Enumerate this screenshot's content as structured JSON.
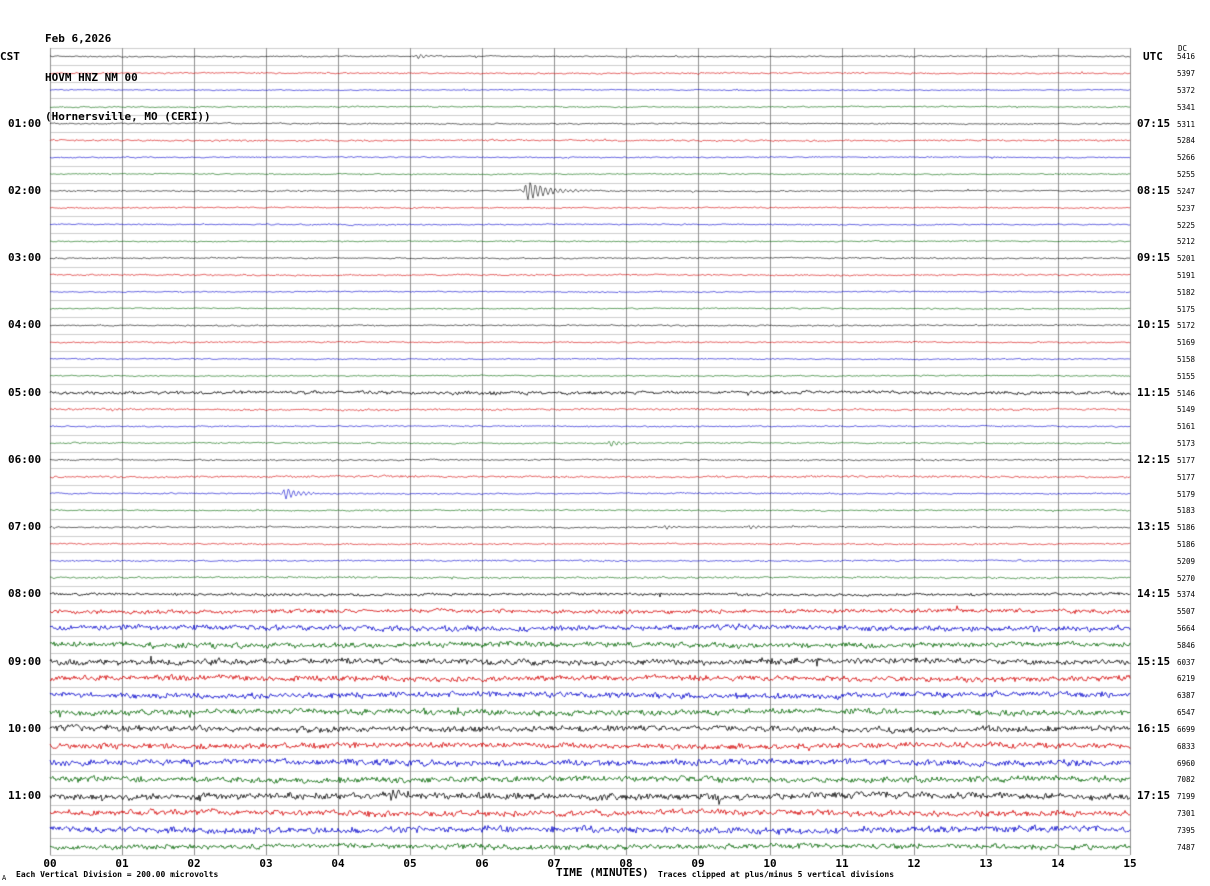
{
  "header": {
    "date": "Feb 6,2026",
    "station": "HOVM HNZ NM 00",
    "location": "(Hornersville, MO (CERI))",
    "left_tz": "CST",
    "right_tz": "UTC",
    "dc_label": "DC"
  },
  "footer": {
    "xaxis_title": "TIME (MINUTES)",
    "scale_note": "Each Vertical Division =  200.00 microvolts",
    "clip_note": "Traces clipped at plus/minus 5 vertical divisions",
    "corner_mark": "A"
  },
  "chart_data": {
    "type": "line",
    "title": "HOVM HNZ NM 00 helicorder, Feb 6,2026, Hornersville, MO (CERI)",
    "xlabel": "TIME (MINUTES)",
    "x_range": [
      0,
      15
    ],
    "minutes_per_line": 15,
    "x_ticks": [
      "00",
      "01",
      "02",
      "03",
      "04",
      "05",
      "06",
      "07",
      "08",
      "09",
      "10",
      "11",
      "12",
      "13",
      "14",
      "15"
    ],
    "cst_hour_labels": [
      "01:00",
      "02:00",
      "03:00",
      "04:00",
      "05:00",
      "06:00",
      "07:00",
      "08:00",
      "09:00",
      "10:00",
      "11:00"
    ],
    "utc_hour_labels": [
      "07:15",
      "08:15",
      "09:15",
      "10:15",
      "11:15",
      "12:15",
      "13:15",
      "14:15",
      "15:15",
      "16:15",
      "17:15"
    ],
    "hour_label_first_row": 4,
    "hour_label_row_step": 4,
    "color_cycle": [
      "black",
      "red",
      "blue",
      "green"
    ],
    "colors": {
      "black": "#000000",
      "red": "#d40000",
      "blue": "#0000cc",
      "green": "#006600",
      "grid_v": "#8f8f8f",
      "grid_h": "#cccccc"
    },
    "rows": [
      {
        "dc": 5416,
        "noise": 0.9
      },
      {
        "dc": 5397,
        "noise": 1.0
      },
      {
        "dc": 5372,
        "noise": 0.7
      },
      {
        "dc": 5341,
        "noise": 0.8
      },
      {
        "dc": 5311,
        "noise": 0.9
      },
      {
        "dc": 5284,
        "noise": 1.1
      },
      {
        "dc": 5266,
        "noise": 0.8
      },
      {
        "dc": 5255,
        "noise": 0.8
      },
      {
        "dc": 5247,
        "noise": 0.9
      },
      {
        "dc": 5237,
        "noise": 0.9
      },
      {
        "dc": 5225,
        "noise": 0.8
      },
      {
        "dc": 5212,
        "noise": 0.8
      },
      {
        "dc": 5201,
        "noise": 0.9
      },
      {
        "dc": 5191,
        "noise": 1.0
      },
      {
        "dc": 5182,
        "noise": 0.8
      },
      {
        "dc": 5175,
        "noise": 0.8
      },
      {
        "dc": 5172,
        "noise": 0.9
      },
      {
        "dc": 5169,
        "noise": 0.9
      },
      {
        "dc": 5158,
        "noise": 0.8
      },
      {
        "dc": 5155,
        "noise": 0.8
      },
      {
        "dc": 5146,
        "noise": 2.0
      },
      {
        "dc": 5149,
        "noise": 1.3
      },
      {
        "dc": 5161,
        "noise": 0.9
      },
      {
        "dc": 5173,
        "noise": 0.9
      },
      {
        "dc": 5177,
        "noise": 1.0
      },
      {
        "dc": 5177,
        "noise": 1.3
      },
      {
        "dc": 5179,
        "noise": 0.9
      },
      {
        "dc": 5183,
        "noise": 0.9
      },
      {
        "dc": 5186,
        "noise": 1.0
      },
      {
        "dc": 5186,
        "noise": 1.0
      },
      {
        "dc": 5209,
        "noise": 1.0
      },
      {
        "dc": 5270,
        "noise": 1.1
      },
      {
        "dc": 5374,
        "noise": 1.6
      },
      {
        "dc": 5507,
        "noise": 2.4
      },
      {
        "dc": 5664,
        "noise": 3.2
      },
      {
        "dc": 5846,
        "noise": 3.3
      },
      {
        "dc": 6037,
        "noise": 3.5
      },
      {
        "dc": 6219,
        "noise": 3.3
      },
      {
        "dc": 6387,
        "noise": 3.4
      },
      {
        "dc": 6547,
        "noise": 3.4
      },
      {
        "dc": 6699,
        "noise": 3.6
      },
      {
        "dc": 6833,
        "noise": 3.4
      },
      {
        "dc": 6960,
        "noise": 3.6
      },
      {
        "dc": 7082,
        "noise": 3.6
      },
      {
        "dc": 7199,
        "noise": 3.8
      },
      {
        "dc": 7301,
        "noise": 3.6
      },
      {
        "dc": 7395,
        "noise": 3.8
      },
      {
        "dc": 7487,
        "noise": 3.2
      }
    ],
    "events": [
      {
        "row": 0,
        "minute": 5.1,
        "amp": 2.5
      },
      {
        "row": 8,
        "minute": 6.62,
        "amp": 10
      },
      {
        "row": 21,
        "minute": 0.85,
        "amp": 2.0
      },
      {
        "row": 23,
        "minute": 7.78,
        "amp": 3.5
      },
      {
        "row": 26,
        "minute": 3.26,
        "amp": 6.0
      },
      {
        "row": 28,
        "minute": 8.55,
        "amp": 2.2
      },
      {
        "row": 28,
        "minute": 9.72,
        "amp": 2.6
      },
      {
        "row": 34,
        "minute": 13.65,
        "amp": 4.0
      },
      {
        "row": 44,
        "minute": 4.72,
        "amp": 6.0
      }
    ]
  }
}
